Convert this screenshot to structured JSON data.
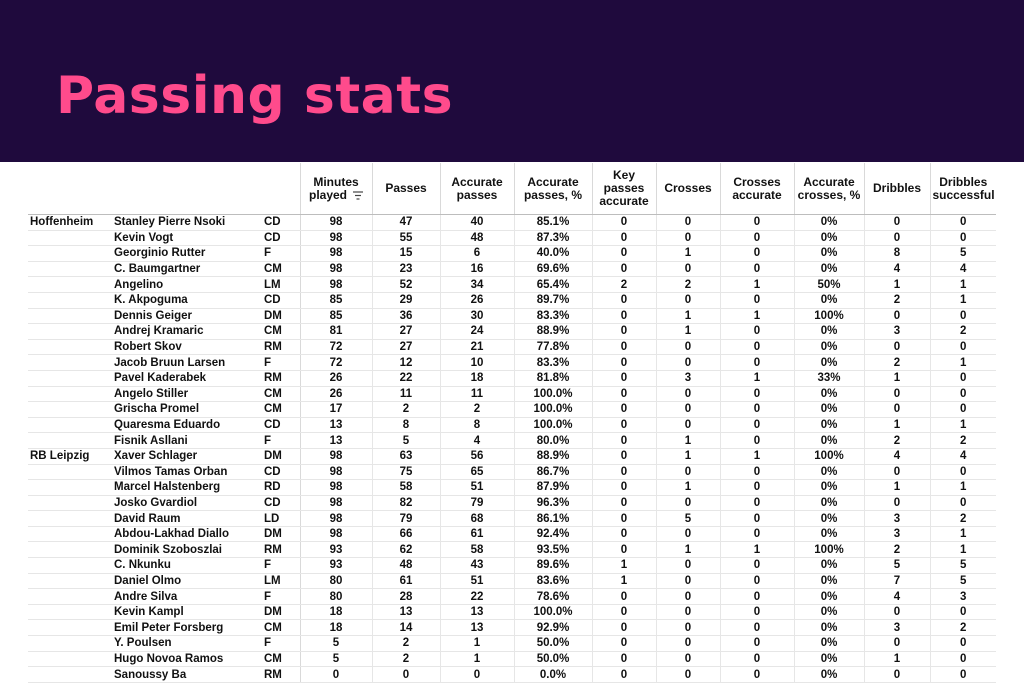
{
  "header": {
    "title": "Passing stats"
  },
  "columns": [
    "Minutes played",
    "Passes",
    "Accurate passes",
    "Accurate passes, %",
    "Key passes accurate",
    "Crosses",
    "Crosses accurate",
    "Accurate crosses, %",
    "Dribbles",
    "Dribbles successful"
  ],
  "sort_icon": "sort-filter-icon",
  "rows": [
    {
      "team": "Hoffenheim",
      "player": "Stanley Pierre Nsoki",
      "pos": "CD",
      "v": [
        "98",
        "47",
        "40",
        "85.1%",
        "0",
        "0",
        "0",
        "0%",
        "0",
        "0"
      ]
    },
    {
      "team": "",
      "player": "Kevin Vogt",
      "pos": "CD",
      "v": [
        "98",
        "55",
        "48",
        "87.3%",
        "0",
        "0",
        "0",
        "0%",
        "0",
        "0"
      ]
    },
    {
      "team": "",
      "player": "Georginio Rutter",
      "pos": "F",
      "v": [
        "98",
        "15",
        "6",
        "40.0%",
        "0",
        "1",
        "0",
        "0%",
        "8",
        "5"
      ]
    },
    {
      "team": "",
      "player": "C. Baumgartner",
      "pos": "CM",
      "v": [
        "98",
        "23",
        "16",
        "69.6%",
        "0",
        "0",
        "0",
        "0%",
        "4",
        "4"
      ]
    },
    {
      "team": "",
      "player": "Angelino",
      "pos": "LM",
      "v": [
        "98",
        "52",
        "34",
        "65.4%",
        "2",
        "2",
        "1",
        "50%",
        "1",
        "1"
      ]
    },
    {
      "team": "",
      "player": "K. Akpoguma",
      "pos": "CD",
      "v": [
        "85",
        "29",
        "26",
        "89.7%",
        "0",
        "0",
        "0",
        "0%",
        "2",
        "1"
      ]
    },
    {
      "team": "",
      "player": "Dennis Geiger",
      "pos": "DM",
      "v": [
        "85",
        "36",
        "30",
        "83.3%",
        "0",
        "1",
        "1",
        "100%",
        "0",
        "0"
      ]
    },
    {
      "team": "",
      "player": "Andrej Kramaric",
      "pos": "CM",
      "v": [
        "81",
        "27",
        "24",
        "88.9%",
        "0",
        "1",
        "0",
        "0%",
        "3",
        "2"
      ]
    },
    {
      "team": "",
      "player": "Robert Skov",
      "pos": "RM",
      "v": [
        "72",
        "27",
        "21",
        "77.8%",
        "0",
        "0",
        "0",
        "0%",
        "0",
        "0"
      ]
    },
    {
      "team": "",
      "player": "Jacob Bruun Larsen",
      "pos": "F",
      "v": [
        "72",
        "12",
        "10",
        "83.3%",
        "0",
        "0",
        "0",
        "0%",
        "2",
        "1"
      ]
    },
    {
      "team": "",
      "player": "Pavel Kaderabek",
      "pos": "RM",
      "v": [
        "26",
        "22",
        "18",
        "81.8%",
        "0",
        "3",
        "1",
        "33%",
        "1",
        "0"
      ]
    },
    {
      "team": "",
      "player": "Angelo Stiller",
      "pos": "CM",
      "v": [
        "26",
        "11",
        "11",
        "100.0%",
        "0",
        "0",
        "0",
        "0%",
        "0",
        "0"
      ]
    },
    {
      "team": "",
      "player": "Grischa Promel",
      "pos": "CM",
      "v": [
        "17",
        "2",
        "2",
        "100.0%",
        "0",
        "0",
        "0",
        "0%",
        "0",
        "0"
      ]
    },
    {
      "team": "",
      "player": "Quaresma Eduardo",
      "pos": "CD",
      "v": [
        "13",
        "8",
        "8",
        "100.0%",
        "0",
        "0",
        "0",
        "0%",
        "1",
        "1"
      ]
    },
    {
      "team": "",
      "player": "Fisnik Asllani",
      "pos": "F",
      "v": [
        "13",
        "5",
        "4",
        "80.0%",
        "0",
        "1",
        "0",
        "0%",
        "2",
        "2"
      ]
    },
    {
      "team": "RB Leipzig",
      "player": "Xaver Schlager",
      "pos": "DM",
      "v": [
        "98",
        "63",
        "56",
        "88.9%",
        "0",
        "1",
        "1",
        "100%",
        "4",
        "4"
      ]
    },
    {
      "team": "",
      "player": "Vilmos Tamas Orban",
      "pos": "CD",
      "v": [
        "98",
        "75",
        "65",
        "86.7%",
        "0",
        "0",
        "0",
        "0%",
        "0",
        "0"
      ]
    },
    {
      "team": "",
      "player": "Marcel Halstenberg",
      "pos": "RD",
      "v": [
        "98",
        "58",
        "51",
        "87.9%",
        "0",
        "1",
        "0",
        "0%",
        "1",
        "1"
      ]
    },
    {
      "team": "",
      "player": "Josko Gvardiol",
      "pos": "CD",
      "v": [
        "98",
        "82",
        "79",
        "96.3%",
        "0",
        "0",
        "0",
        "0%",
        "0",
        "0"
      ]
    },
    {
      "team": "",
      "player": "David Raum",
      "pos": "LD",
      "v": [
        "98",
        "79",
        "68",
        "86.1%",
        "0",
        "5",
        "0",
        "0%",
        "3",
        "2"
      ]
    },
    {
      "team": "",
      "player": "Abdou-Lakhad Diallo",
      "pos": "DM",
      "v": [
        "98",
        "66",
        "61",
        "92.4%",
        "0",
        "0",
        "0",
        "0%",
        "3",
        "1"
      ]
    },
    {
      "team": "",
      "player": "Dominik Szoboszlai",
      "pos": "RM",
      "v": [
        "93",
        "62",
        "58",
        "93.5%",
        "0",
        "1",
        "1",
        "100%",
        "2",
        "1"
      ]
    },
    {
      "team": "",
      "player": "C. Nkunku",
      "pos": "F",
      "v": [
        "93",
        "48",
        "43",
        "89.6%",
        "1",
        "0",
        "0",
        "0%",
        "5",
        "5"
      ]
    },
    {
      "team": "",
      "player": "Daniel Olmo",
      "pos": "LM",
      "v": [
        "80",
        "61",
        "51",
        "83.6%",
        "1",
        "0",
        "0",
        "0%",
        "7",
        "5"
      ]
    },
    {
      "team": "",
      "player": "Andre Silva",
      "pos": "F",
      "v": [
        "80",
        "28",
        "22",
        "78.6%",
        "0",
        "0",
        "0",
        "0%",
        "4",
        "3"
      ]
    },
    {
      "team": "",
      "player": "Kevin Kampl",
      "pos": "DM",
      "v": [
        "18",
        "13",
        "13",
        "100.0%",
        "0",
        "0",
        "0",
        "0%",
        "0",
        "0"
      ]
    },
    {
      "team": "",
      "player": "Emil Peter Forsberg",
      "pos": "CM",
      "v": [
        "18",
        "14",
        "13",
        "92.9%",
        "0",
        "0",
        "0",
        "0%",
        "3",
        "2"
      ]
    },
    {
      "team": "",
      "player": "Y. Poulsen",
      "pos": "F",
      "v": [
        "5",
        "2",
        "1",
        "50.0%",
        "0",
        "0",
        "0",
        "0%",
        "0",
        "0"
      ]
    },
    {
      "team": "",
      "player": "Hugo Novoa Ramos",
      "pos": "CM",
      "v": [
        "5",
        "2",
        "1",
        "50.0%",
        "0",
        "0",
        "0",
        "0%",
        "1",
        "0"
      ]
    },
    {
      "team": "",
      "player": "Sanoussy Ba",
      "pos": "RM",
      "v": [
        "0",
        "0",
        "0",
        "0.0%",
        "0",
        "0",
        "0",
        "0%",
        "0",
        "0"
      ]
    }
  ]
}
